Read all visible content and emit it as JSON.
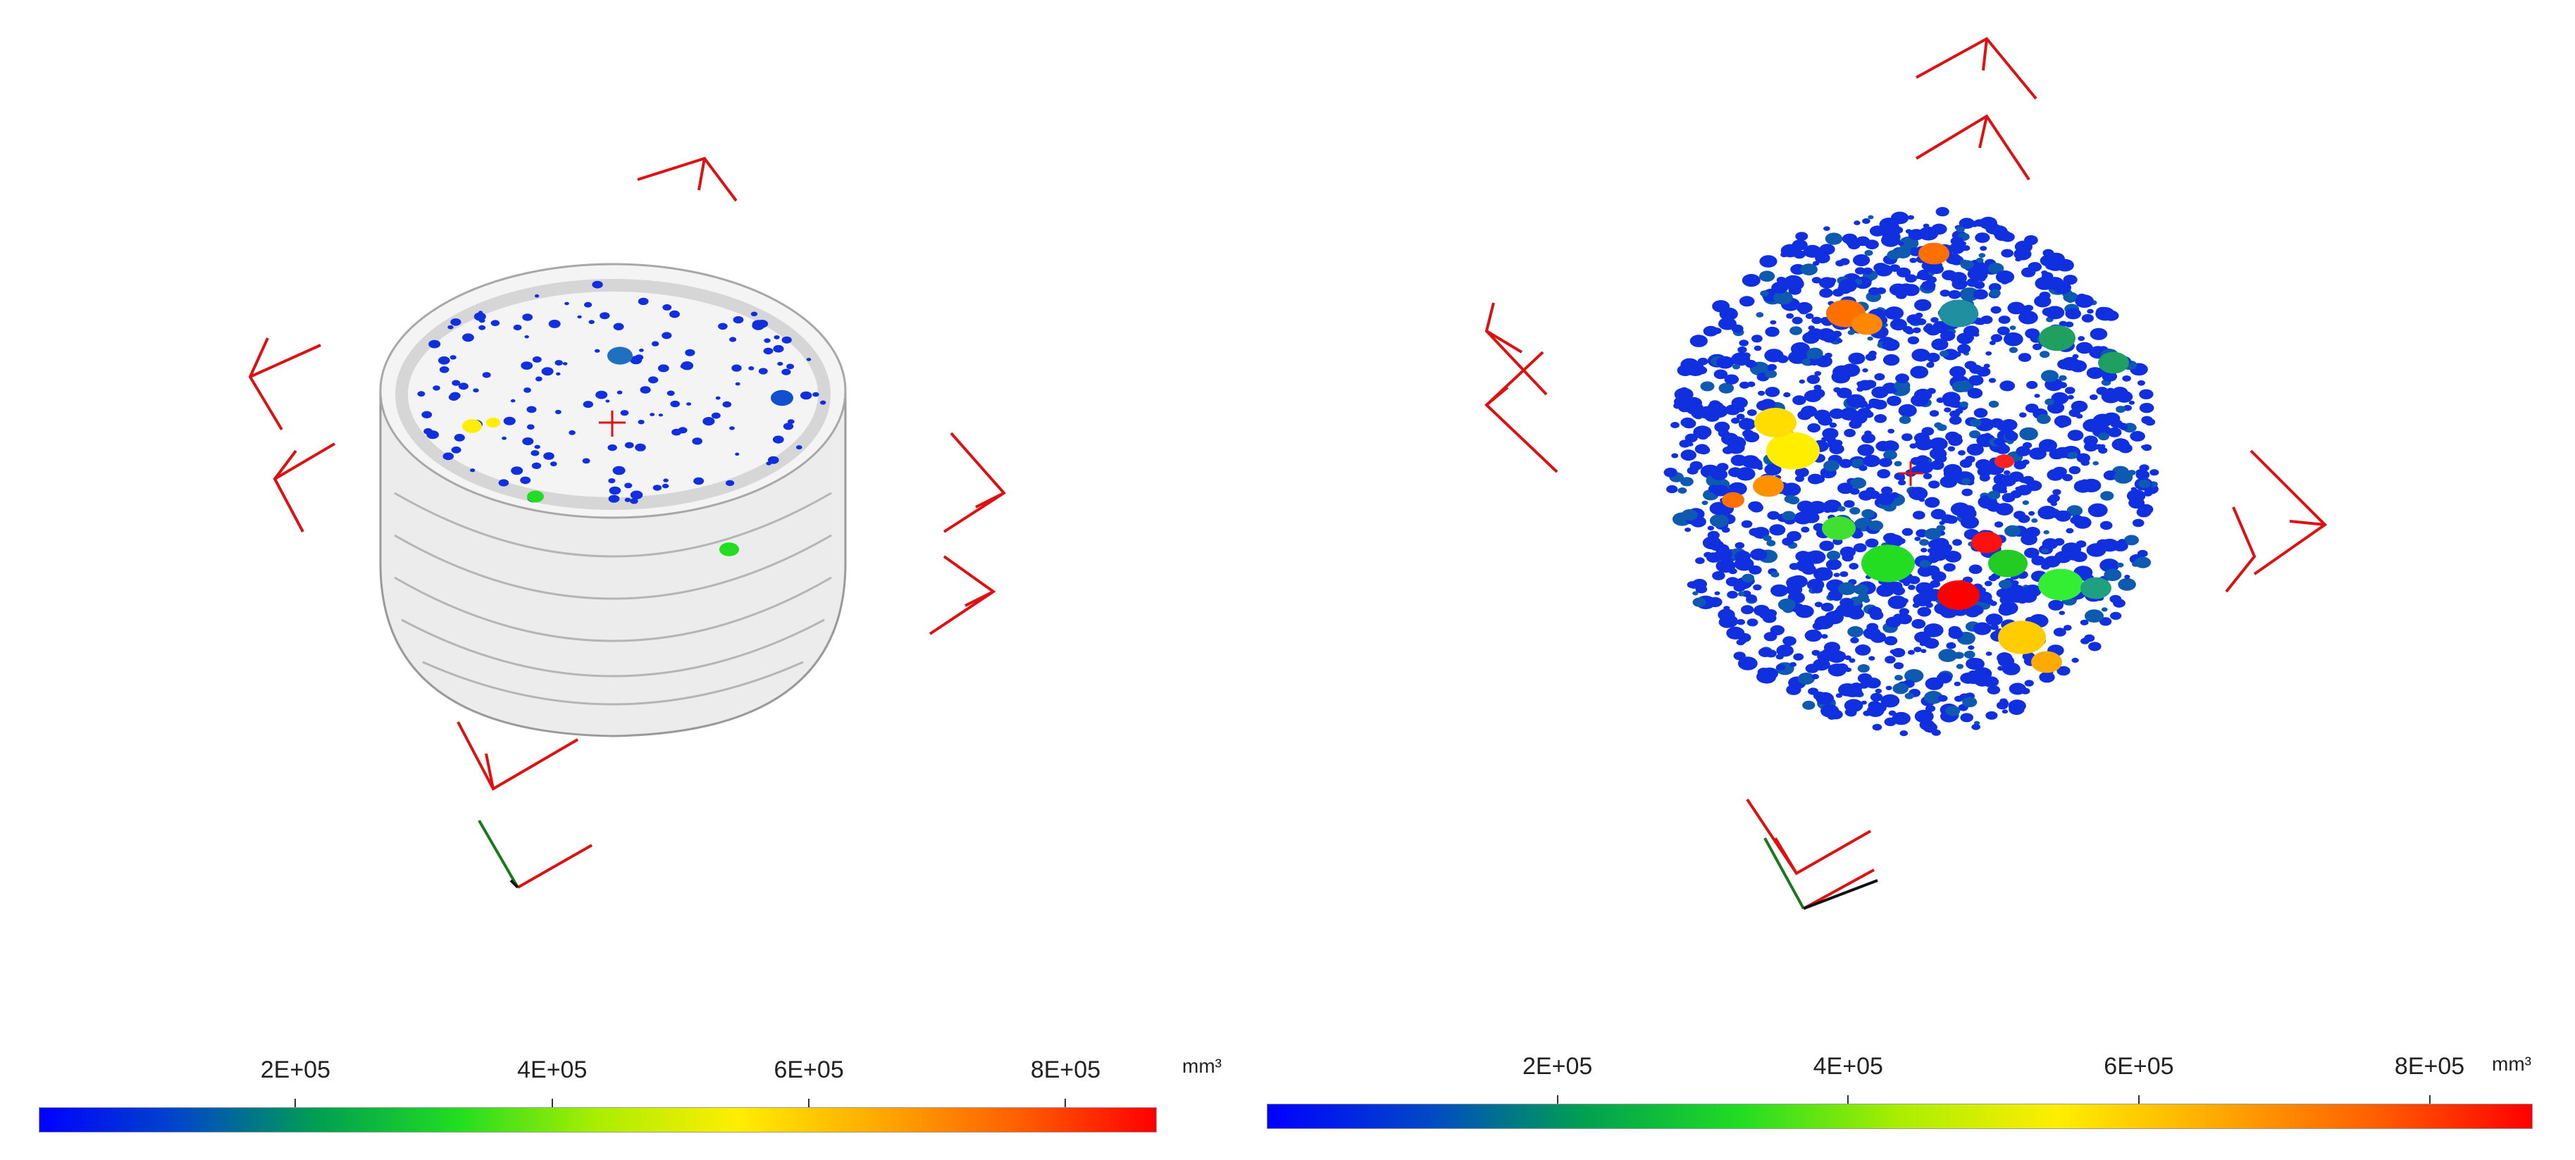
{
  "colors": {
    "axis_red": "#dd1111",
    "axis_green": "#1a7a1a",
    "axis_black": "#111111",
    "mesh_gray": "#c7c7c7",
    "colormap": [
      "#0000ff",
      "#0047c8",
      "#00a050",
      "#22dd22",
      "#aaee00",
      "#ffee00",
      "#ffaa00",
      "#ff6000",
      "#ff0000"
    ]
  },
  "panels": [
    {
      "name": "pore-volume-with-mesh",
      "colorbar": {
        "tick_labels": [
          "2E+05",
          "4E+05",
          "6E+05",
          "8E+05"
        ],
        "tick_values": [
          200000,
          400000,
          600000,
          800000
        ],
        "range": [
          0,
          870000
        ],
        "unit": "mm³"
      }
    },
    {
      "name": "pore-volume-pores-only",
      "colorbar": {
        "tick_labels": [
          "2E+05",
          "4E+05",
          "6E+05",
          "8E+05"
        ],
        "tick_values": [
          200000,
          400000,
          600000,
          800000
        ],
        "range": [
          0,
          870000
        ],
        "unit": "mm³"
      }
    }
  ]
}
